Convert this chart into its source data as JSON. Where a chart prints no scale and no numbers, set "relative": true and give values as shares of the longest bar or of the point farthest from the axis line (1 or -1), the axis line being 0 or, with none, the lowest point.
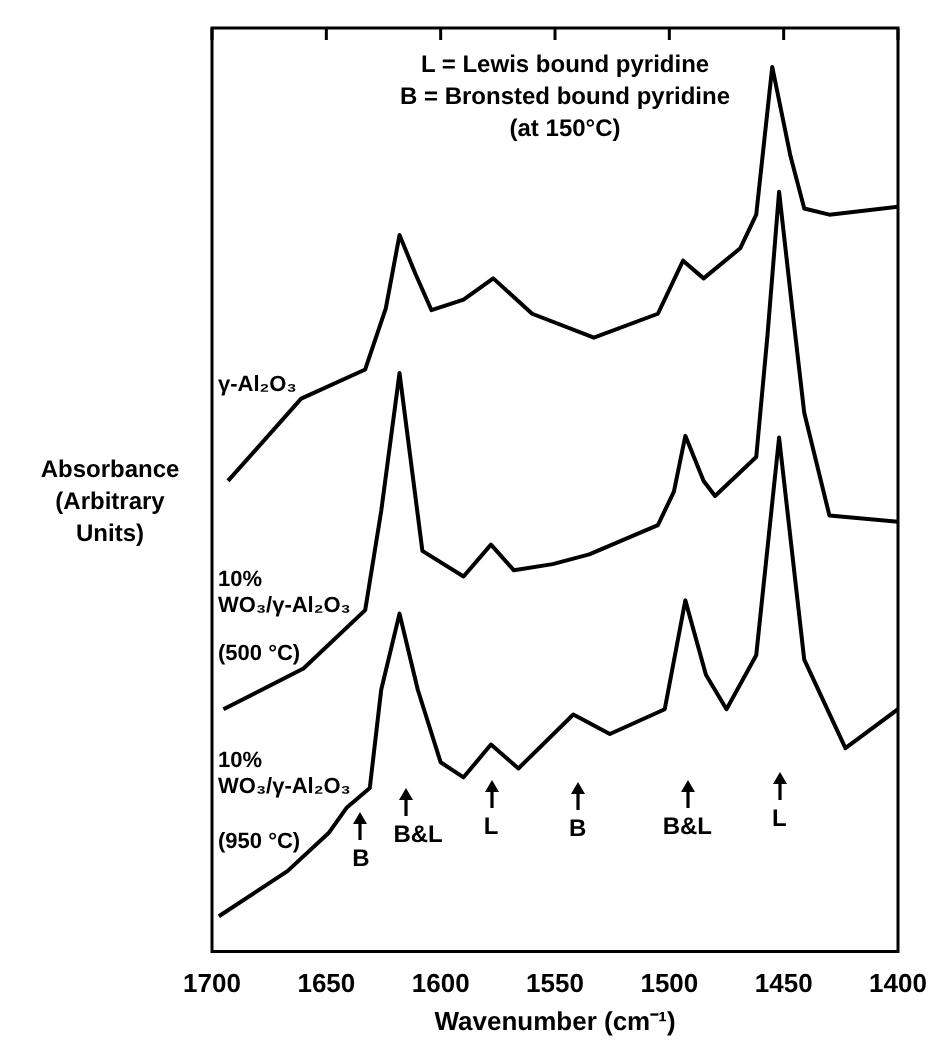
{
  "chart_data": {
    "type": "line",
    "relative": true,
    "xlabel": "Wavenumber (cm⁻¹)",
    "ylabel": "Absorbance (Arbitrary Units)",
    "xlim": [
      1700,
      1400
    ],
    "xticks": [
      1700,
      1650,
      1600,
      1550,
      1500,
      1450,
      1400
    ],
    "marker": "none",
    "line_style": "solid",
    "annotations": [
      "L = Lewis bound pyridine",
      "B = Bronsted bound pyridine",
      "(at 150°C)",
      "B",
      "B&L",
      "L",
      "B",
      "B&L",
      "L"
    ],
    "series": [
      {
        "name": "γ-Al₂O₃",
        "color": "#000000",
        "x": [
          1693,
          1661,
          1633,
          1624,
          1618,
          1611,
          1604,
          1590,
          1577,
          1560,
          1533,
          1505,
          1494,
          1485,
          1469,
          1462,
          1455,
          1447,
          1441,
          1430,
          1400
        ],
        "values": [
          0.532,
          0.625,
          0.658,
          0.727,
          0.81,
          0.766,
          0.725,
          0.737,
          0.761,
          0.721,
          0.694,
          0.721,
          0.781,
          0.761,
          0.795,
          0.833,
          1.0,
          0.899,
          0.84,
          0.833,
          0.842
        ]
      },
      {
        "name": "10% WO₃/γ-Al₂O₃ (500 °C)",
        "color": "#000000",
        "x": [
          1695,
          1660,
          1633,
          1626,
          1618,
          1608,
          1590,
          1578,
          1568,
          1551,
          1535,
          1505,
          1498,
          1493,
          1485,
          1480,
          1462,
          1457,
          1452,
          1446,
          1441,
          1430,
          1400
        ],
        "values": [
          0.274,
          0.32,
          0.386,
          0.498,
          0.654,
          0.453,
          0.424,
          0.46,
          0.431,
          0.438,
          0.449,
          0.482,
          0.52,
          0.583,
          0.532,
          0.515,
          0.559,
          0.699,
          0.859,
          0.721,
          0.609,
          0.493,
          0.486
        ]
      },
      {
        "name": "10% WO₃/γ-Al₂O₃ (950 °C)",
        "color": "#000000",
        "x": [
          1697,
          1667,
          1649,
          1641,
          1631,
          1626,
          1618,
          1610,
          1600,
          1590,
          1578,
          1566,
          1542,
          1526,
          1502,
          1493,
          1484,
          1475,
          1462,
          1452,
          1441,
          1423,
          1400
        ],
        "values": [
          0.04,
          0.091,
          0.134,
          0.163,
          0.185,
          0.296,
          0.382,
          0.296,
          0.214,
          0.197,
          0.234,
          0.207,
          0.268,
          0.246,
          0.274,
          0.397,
          0.313,
          0.274,
          0.335,
          0.581,
          0.33,
          0.23,
          0.274
        ]
      }
    ]
  }
}
